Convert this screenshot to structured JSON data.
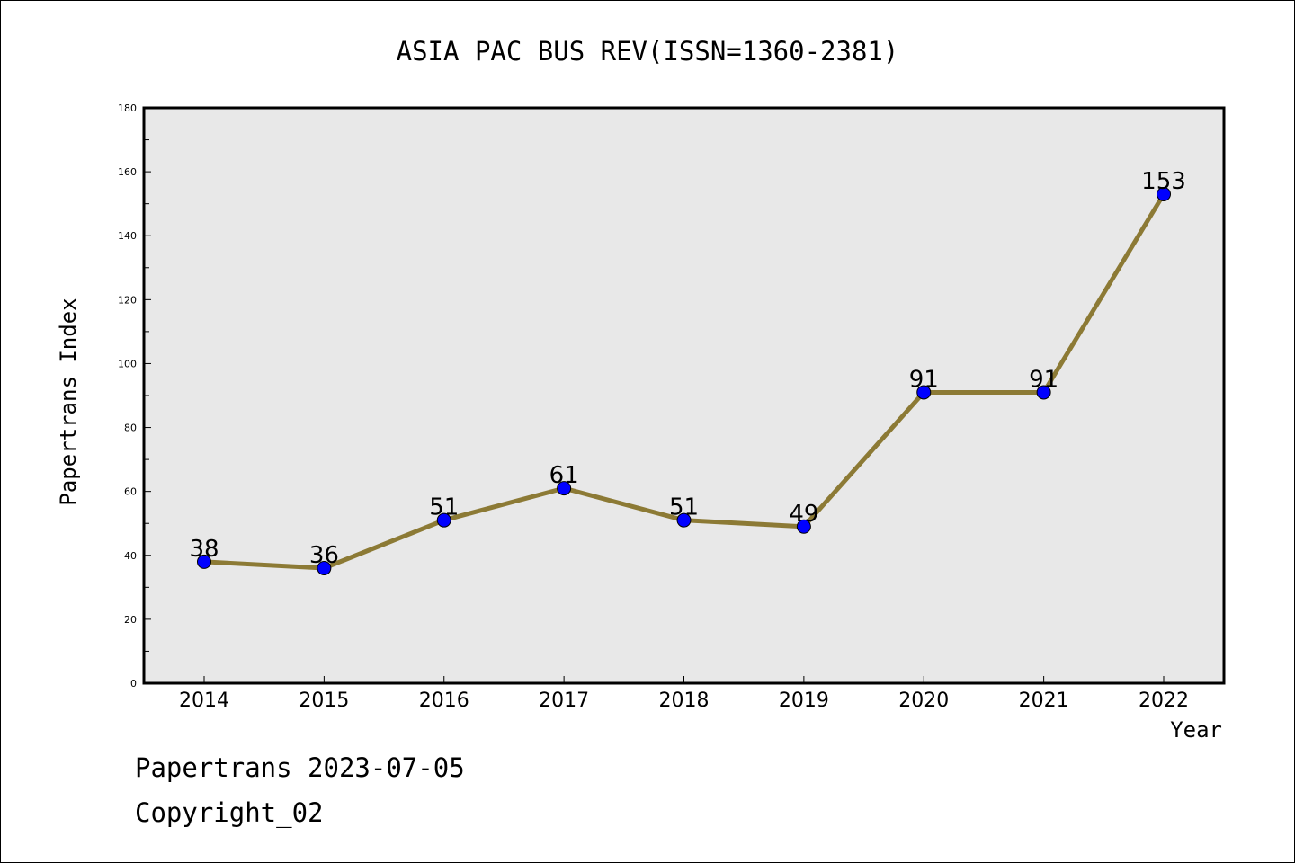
{
  "chart_data": {
    "type": "line",
    "title": "ASIA PAC BUS REV(ISSN=1360-2381)",
    "xlabel": "Year",
    "ylabel": "Papertrans Index",
    "categories": [
      "2014",
      "2015",
      "2016",
      "2017",
      "2018",
      "2019",
      "2020",
      "2021",
      "2022"
    ],
    "series": [
      {
        "values": [
          38,
          36,
          51,
          61,
          51,
          49,
          91,
          91,
          153
        ]
      }
    ],
    "data_labels": [
      "38",
      "36",
      "51",
      "61",
      "51",
      "49",
      "91",
      "91",
      "153"
    ],
    "ylim": [
      0,
      180
    ],
    "y_ticks": [
      "0",
      "20",
      "40",
      "60",
      "80",
      "100",
      "120",
      "140",
      "160",
      "180"
    ],
    "grid": false,
    "line_color": "#8c7a35",
    "marker_color": "#0000ff",
    "plot_background": "#e8e8e8"
  },
  "footer": {
    "line1": "Papertrans 2023-07-05",
    "line2": "Copyright_02"
  }
}
